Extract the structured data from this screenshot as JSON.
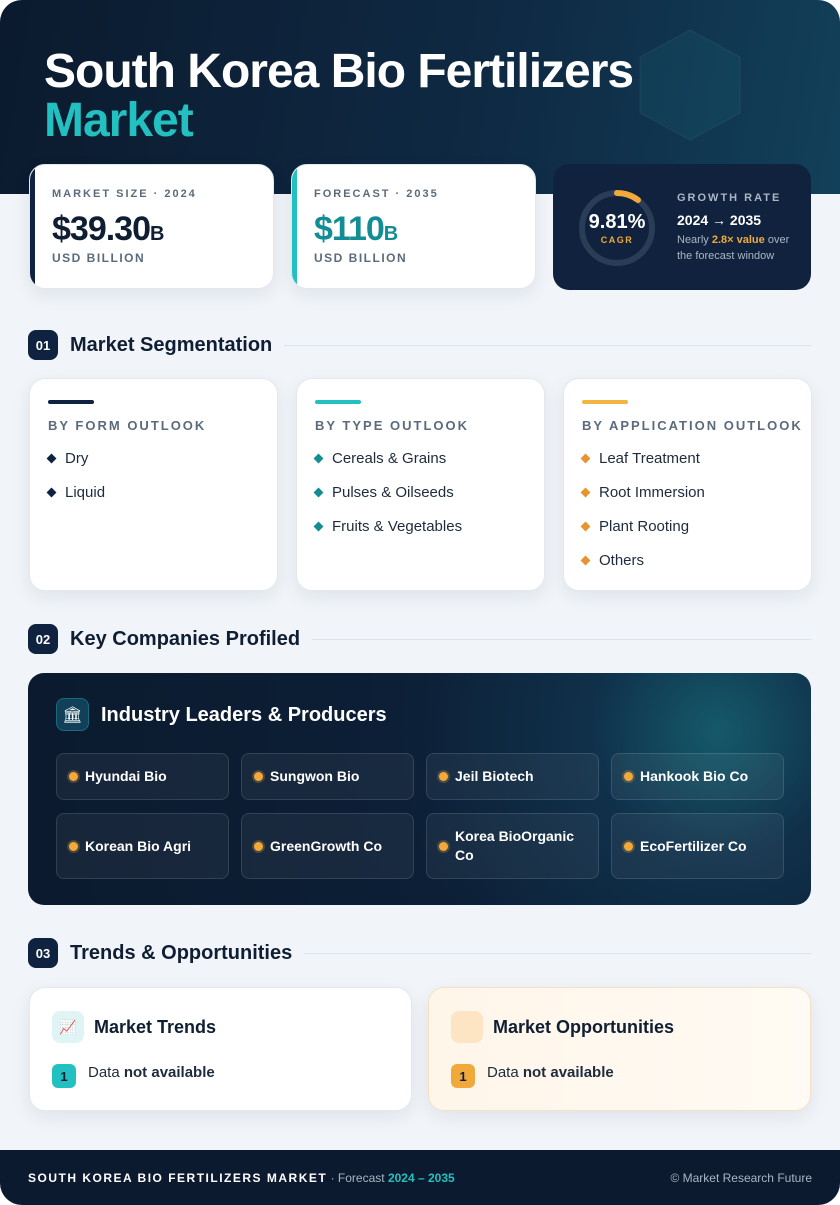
{
  "header": {
    "title_line1": "South Korea Bio Fertilizers",
    "title_line2": "Market"
  },
  "stats": [
    {
      "label": "MARKET SIZE · 2024",
      "value": "$39.30",
      "unit": "B",
      "note": "USD BILLION"
    },
    {
      "label": "FORECAST · 2035",
      "value": "$110",
      "unit": "B",
      "note": "USD BILLION"
    }
  ],
  "growth": {
    "cagr": "9.81%",
    "cagr_label": "CAGR",
    "label": "GROWTH RATE",
    "period": "2024 → 2035",
    "note_pre": "Nearly",
    "note_highlight": "2.8× value",
    "note_post": "over the forecast window"
  },
  "sections": [
    {
      "number": "01",
      "title": "Market Segmentation"
    },
    {
      "number": "02",
      "title": "Key Companies Profiled"
    },
    {
      "number": "03",
      "title": "Trends & Opportunities"
    }
  ],
  "segmentation": [
    {
      "title": "BY FORM OUTLOOK",
      "items": [
        "Dry",
        "Liquid"
      ]
    },
    {
      "title": "BY TYPE OUTLOOK",
      "items": [
        "Cereals & Grains",
        "Pulses & Oilseeds",
        "Fruits & Vegetables"
      ]
    },
    {
      "title": "BY APPLICATION OUTLOOK",
      "items": [
        "Leaf Treatment",
        "Root Immersion",
        "Plant Rooting",
        "Others"
      ]
    }
  ],
  "companies": {
    "title": "Industry Leaders & Producers",
    "items": [
      "Hyundai Bio",
      "Sungwon Bio",
      "Jeil Biotech",
      "Hankook Bio Co",
      "Korean Bio Agri",
      "GreenGrowth Co",
      "Korea BioOrganic Co",
      "EcoFertilizer Co"
    ]
  },
  "trends": [
    {
      "title": "Market Trends",
      "badge": "1",
      "text": "Data",
      "text_bold": "not available"
    },
    {
      "title": "Market Opportunities",
      "badge": "1",
      "text": "Data",
      "text_bold": "not available"
    }
  ],
  "footer": {
    "title": "SOUTH KOREA BIO FERTILIZERS MARKET",
    "forecast": "· Forecast",
    "period": "2024 – 2035",
    "copyright": "© Market Research Future"
  }
}
